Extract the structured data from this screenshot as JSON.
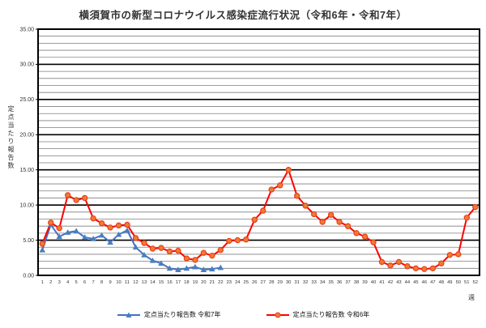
{
  "title": "横須賀市の新型コロナウイルス感染症流行状況（令和6年・令和7年）",
  "chart_data": {
    "type": "line",
    "xlabel": "週",
    "ylabel": "定点当たり報告数",
    "ylim": [
      0,
      35
    ],
    "y_major_step": 5,
    "y_minor_step": 1,
    "grid": true,
    "legend_position": "bottom",
    "x": [
      1,
      2,
      3,
      4,
      5,
      6,
      7,
      8,
      9,
      10,
      11,
      12,
      13,
      14,
      15,
      16,
      17,
      18,
      19,
      20,
      21,
      22,
      23,
      24,
      25,
      26,
      27,
      28,
      29,
      30,
      31,
      32,
      33,
      34,
      35,
      36,
      37,
      38,
      39,
      40,
      41,
      42,
      43,
      44,
      45,
      46,
      47,
      48,
      49,
      50,
      51,
      52
    ],
    "y_ticks": [
      "0.00",
      "5.00",
      "10.00",
      "15.00",
      "20.00",
      "25.00",
      "30.00",
      "35.00"
    ],
    "series": [
      {
        "name": "定点当たり報告数 令和7年",
        "marker": "triangle",
        "line_color": "#4472C4",
        "marker_color": "#4A7EBB",
        "values": [
          3.6,
          7.2,
          5.5,
          6.1,
          6.3,
          5.4,
          5.2,
          5.7,
          4.7,
          5.8,
          6.4,
          4.0,
          2.9,
          2.1,
          1.7,
          1.0,
          0.8,
          1.0,
          1.2,
          0.8,
          0.9,
          1.1
        ]
      },
      {
        "name": "定点当たり報告数 令和6年",
        "marker": "circle",
        "line_color": "#FF0000",
        "marker_color": "#ED7D31",
        "marker_edge": "#E8401C",
        "values": [
          4.5,
          7.5,
          6.7,
          11.4,
          10.7,
          11.0,
          8.1,
          7.4,
          6.8,
          7.1,
          7.2,
          5.3,
          4.6,
          3.8,
          3.9,
          3.4,
          3.5,
          2.4,
          2.2,
          3.2,
          2.8,
          3.6,
          4.9,
          5.0,
          5.1,
          7.9,
          9.2,
          12.2,
          12.8,
          15.0,
          11.3,
          9.9,
          8.7,
          7.6,
          8.6,
          7.6,
          7.0,
          6.0,
          5.5,
          4.7,
          1.9,
          1.4,
          1.9,
          1.3,
          1.0,
          0.9,
          1.0,
          1.7,
          2.9,
          3.0,
          8.2,
          9.7
        ]
      }
    ]
  }
}
